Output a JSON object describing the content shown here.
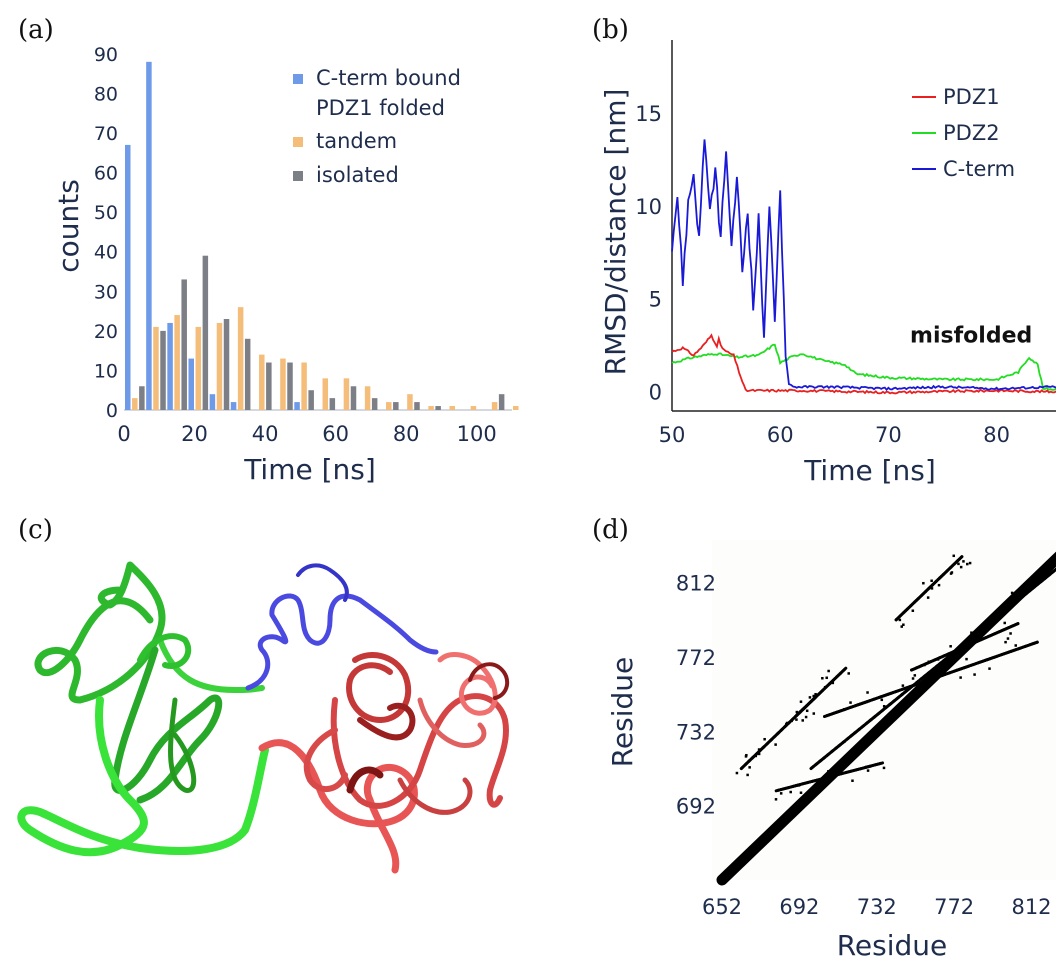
{
  "panels": {
    "a": "(a)",
    "b": "(b)",
    "c": "(c)",
    "d": "(d)"
  },
  "chart_data": [
    {
      "id": "a",
      "type": "bar",
      "xlabel": "Time [ns]",
      "ylabel": "counts",
      "xlim": [
        0,
        110
      ],
      "ylim": [
        0,
        92
      ],
      "xticks": [
        0,
        20,
        40,
        60,
        80,
        100
      ],
      "yticks": [
        0,
        10,
        20,
        30,
        40,
        50,
        60,
        70,
        80,
        90
      ],
      "legend_position": "top-right",
      "bin_width": 6,
      "categories": [
        0,
        6,
        12,
        18,
        24,
        30,
        36,
        42,
        48,
        54,
        60,
        66,
        72,
        78,
        84,
        90,
        96,
        102,
        108
      ],
      "series": [
        {
          "name": "C-term bound\nPDZ1 folded",
          "legend": [
            "C-term bound",
            "PDZ1 folded"
          ],
          "color": "#6f9ae8",
          "values": [
            67,
            88,
            22,
            13,
            4,
            2,
            0,
            0,
            2,
            0,
            0,
            0,
            0,
            0,
            0,
            0,
            0,
            0,
            0
          ]
        },
        {
          "name": "tandem",
          "legend": [
            "tandem"
          ],
          "color": "#f5bd7a",
          "values": [
            3,
            21,
            24,
            21,
            22,
            26,
            14,
            13,
            12,
            8,
            8,
            6,
            2,
            4,
            1,
            1,
            1,
            2,
            1
          ]
        },
        {
          "name": "isolated",
          "legend": [
            "isolated"
          ],
          "color": "#7d7f87",
          "values": [
            6,
            20,
            33,
            39,
            23,
            18,
            12,
            12,
            5,
            3,
            6,
            3,
            2,
            2,
            1,
            0,
            0,
            4,
            0
          ]
        }
      ]
    },
    {
      "id": "b",
      "type": "line",
      "xlabel": "Time [ns]",
      "ylabel": "RMSD/distance [nm]",
      "xlim": [
        50,
        89
      ],
      "ylim": [
        -1,
        19
      ],
      "xticks": [
        50,
        60,
        70,
        80
      ],
      "yticks": [
        0,
        5,
        10,
        15
      ],
      "legend_position": "top-right",
      "annotation": {
        "text": "misfolded",
        "x": 72,
        "y": 2.7
      },
      "series": [
        {
          "name": "PDZ1",
          "color": "#e82020",
          "points": [
            [
              50,
              2.2
            ],
            [
              51,
              2.4
            ],
            [
              52,
              2.0
            ],
            [
              53,
              2.6
            ],
            [
              53.8,
              3.2
            ],
            [
              54.5,
              2.5
            ],
            [
              55,
              2.2
            ],
            [
              55.7,
              2.0
            ],
            [
              56.2,
              1.1
            ],
            [
              56.8,
              0.1
            ],
            [
              58,
              0.1
            ],
            [
              62,
              0.1
            ],
            [
              70,
              0.0
            ],
            [
              80,
              0.1
            ],
            [
              89,
              0.0
            ]
          ]
        },
        {
          "name": "PDZ2",
          "color": "#22dd22",
          "points": [
            [
              50,
              1.6
            ],
            [
              52,
              1.9
            ],
            [
              54,
              2.1
            ],
            [
              56,
              1.9
            ],
            [
              58,
              2.0
            ],
            [
              59.5,
              2.6
            ],
            [
              60,
              1.6
            ],
            [
              61,
              1.9
            ],
            [
              62,
              2.1
            ],
            [
              64,
              1.7
            ],
            [
              66,
              1.5
            ],
            [
              67,
              1.0
            ],
            [
              70,
              0.8
            ],
            [
              75,
              0.7
            ],
            [
              80,
              0.7
            ],
            [
              82,
              1.1
            ],
            [
              83,
              1.9
            ],
            [
              83.8,
              1.5
            ],
            [
              84.3,
              0.2
            ],
            [
              89,
              0.1
            ]
          ]
        },
        {
          "name": "C-term",
          "color": "#1a1ad6",
          "points": [
            [
              50,
              8.0
            ],
            [
              50.5,
              10.6
            ],
            [
              51,
              6.0
            ],
            [
              51.5,
              10.2
            ],
            [
              52,
              11.8
            ],
            [
              52.5,
              8.2
            ],
            [
              53,
              13.9
            ],
            [
              53.5,
              9.5
            ],
            [
              54,
              12.0
            ],
            [
              54.5,
              8.3
            ],
            [
              55,
              13.2
            ],
            [
              55.5,
              7.5
            ],
            [
              56,
              11.8
            ],
            [
              56.5,
              6.5
            ],
            [
              57,
              10.0
            ],
            [
              57.5,
              4.5
            ],
            [
              58,
              9.3
            ],
            [
              58.5,
              3.0
            ],
            [
              59,
              10.2
            ],
            [
              59.5,
              3.5
            ],
            [
              60,
              11.0
            ],
            [
              60.5,
              2.0
            ],
            [
              60.8,
              0.5
            ],
            [
              61.2,
              0.3
            ],
            [
              65,
              0.3
            ],
            [
              70,
              0.2
            ],
            [
              75,
              0.3
            ],
            [
              80,
              0.2
            ],
            [
              85,
              0.3
            ],
            [
              89,
              0.2
            ]
          ]
        }
      ]
    },
    {
      "id": "d",
      "type": "heatmap",
      "xlabel": "Residue",
      "ylabel": "Residue",
      "xlim": [
        652,
        835
      ],
      "ylim": [
        652,
        835
      ],
      "xticks": [
        652,
        692,
        732,
        772,
        812
      ],
      "yticks": [
        692,
        732,
        772,
        812
      ],
      "contact_segments": [
        [
          [
            652,
            652
          ],
          [
            835,
            835
          ]
        ],
        [
          [
            662,
            712
          ],
          [
            700,
            750
          ]
        ],
        [
          [
            700,
            750
          ],
          [
            662,
            712
          ]
        ],
        [
          [
            690,
            740
          ],
          [
            716,
            766
          ]
        ],
        [
          [
            716,
            766
          ],
          [
            690,
            740
          ]
        ],
        [
          [
            742,
            792
          ],
          [
            776,
            826
          ]
        ],
        [
          [
            776,
            826
          ],
          [
            742,
            792
          ]
        ],
        [
          [
            680,
            700
          ],
          [
            735,
            715
          ]
        ],
        [
          [
            735,
            715
          ],
          [
            680,
            700
          ]
        ],
        [
          [
            705,
            740
          ],
          [
            815,
            780
          ]
        ],
        [
          [
            815,
            780
          ],
          [
            705,
            740
          ]
        ],
        [
          [
            750,
            765
          ],
          [
            805,
            790
          ]
        ],
        [
          [
            805,
            790
          ],
          [
            750,
            765
          ]
        ],
        [
          [
            698,
            712
          ],
          [
            828,
            822
          ]
        ],
        [
          [
            828,
            822
          ],
          [
            698,
            712
          ]
        ]
      ]
    }
  ]
}
